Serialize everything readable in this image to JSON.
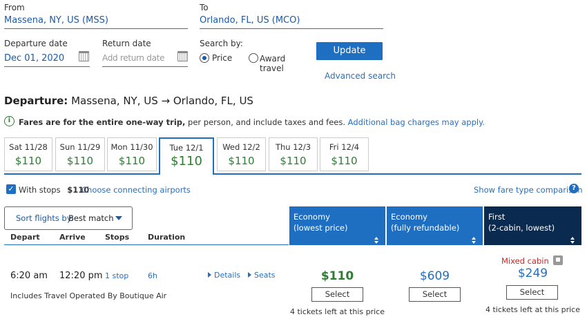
{
  "search": {
    "from_label": "From",
    "from_value": "Massena, NY, US (MSS)",
    "to_label": "To",
    "to_value": "Orlando, FL, US (MCO)",
    "departure_label": "Departure date",
    "departure_value": "Dec 01, 2020",
    "return_label": "Return date",
    "return_placeholder": "Add return date",
    "search_by_label": "Search by:",
    "opt_price": "Price",
    "opt_award_1": "Award",
    "opt_award_2": "travel",
    "update_label": "Update",
    "advanced_label": "Advanced search"
  },
  "departure": {
    "title_bold": "Departure:",
    "title_route": "Massena, NY, US → Orlando, FL, US"
  },
  "fares_note": {
    "bold": "Fares are for the entire one-way trip,",
    "rest": " per person, and include taxes and fees.",
    "link": "Additional bag charges may apply."
  },
  "date_tabs": [
    {
      "day": "Sat 11/28",
      "price": "$110"
    },
    {
      "day": "Sun 11/29",
      "price": "$110"
    },
    {
      "day": "Mon 11/30",
      "price": "$110"
    },
    {
      "day": "Tue 12/1",
      "price": "$110"
    },
    {
      "day": "Wed 12/2",
      "price": "$110"
    },
    {
      "day": "Thu 12/3",
      "price": "$110"
    },
    {
      "day": "Fri 12/4",
      "price": "$110"
    }
  ],
  "filters": {
    "with_stops": "With stops",
    "with_stops_price": "$110",
    "connecting": "Choose connecting airports",
    "compare": "Show fare type comparison",
    "help": "?"
  },
  "sort": {
    "label": "Sort flights by:",
    "value": "Best match"
  },
  "columns": {
    "depart": "Depart",
    "arrive": "Arrive",
    "stops": "Stops",
    "duration": "Duration",
    "fare1_a": "Economy",
    "fare1_b": "(lowest price)",
    "fare2_a": "Economy",
    "fare2_b": "(fully refundable)",
    "fare3_a": "First",
    "fare3_b": "(2-cabin, lowest)"
  },
  "flight": {
    "depart": "6:20 am",
    "arrive": "12:20 pm",
    "stops": "1 stop",
    "duration": "6h",
    "details": "Details",
    "seats": "Seats",
    "operated": "Includes Travel Operated By Boutique Air",
    "fare1_price": "$110",
    "fare2_price": "$609",
    "fare3_price": "$249",
    "mixed": "Mixed cabin",
    "select": "Select",
    "left1": "4 tickets left at this price",
    "left3": "4 tickets left at this price"
  },
  "colors": {
    "accent": "#1e6fc2",
    "price_green": "#2e7d32",
    "first_class": "#0b2a4f",
    "mixed_red": "#c62828"
  }
}
